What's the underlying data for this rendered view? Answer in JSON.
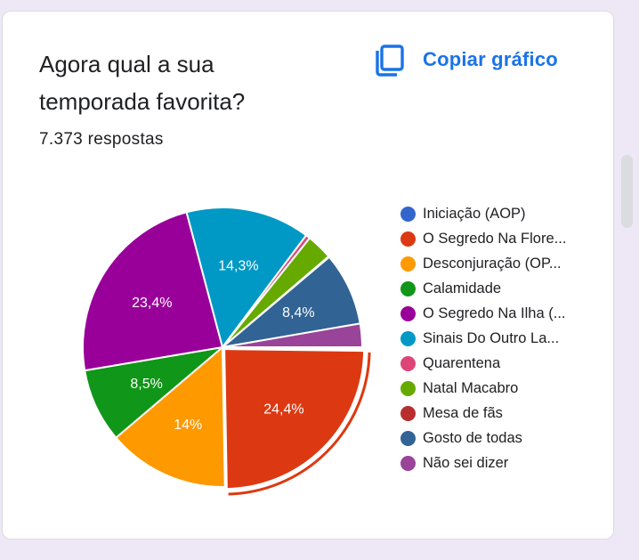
{
  "question": {
    "title": "Agora qual a sua temporada favorita?",
    "response_count": "7.373 respostas"
  },
  "copy_button": {
    "label": "Copiar gráfico",
    "icon": "copy-icon",
    "color": "#1a73e8"
  },
  "chart_data": {
    "type": "pie",
    "legend_position": "right",
    "slices": [
      {
        "label": "Iniciação (AOP)",
        "value": 0.2,
        "color": "#3366cc",
        "value_label": ""
      },
      {
        "label": "O Segredo Na Flore...",
        "value": 24.4,
        "color": "#dc3912",
        "value_label": "24,4%"
      },
      {
        "label": "Desconjuração (OP...",
        "value": 14.0,
        "color": "#ff9900",
        "value_label": "14%"
      },
      {
        "label": "Calamidade",
        "value": 8.5,
        "color": "#109618",
        "value_label": "8,5%"
      },
      {
        "label": "O Segredo Na Ilha (...",
        "value": 23.4,
        "color": "#990099",
        "value_label": "23,4%"
      },
      {
        "label": "Sinais Do Outro La...",
        "value": 14.3,
        "color": "#0099c6",
        "value_label": "14,3%"
      },
      {
        "label": "Quarentena",
        "value": 0.5,
        "color": "#dd4477",
        "value_label": ""
      },
      {
        "label": "Natal Macabro",
        "value": 3.0,
        "color": "#66aa00",
        "value_label": ""
      },
      {
        "label": "Mesa de fãs",
        "value": 0.1,
        "color": "#b82e2e",
        "value_label": ""
      },
      {
        "label": "Gosto de todas",
        "value": 8.4,
        "color": "#316395",
        "value_label": "8,4%"
      },
      {
        "label": "Não sei dizer",
        "value": 2.7,
        "color": "#994499",
        "value_label": ""
      }
    ],
    "highlighted_slice": "O Segredo Na Flore..."
  }
}
